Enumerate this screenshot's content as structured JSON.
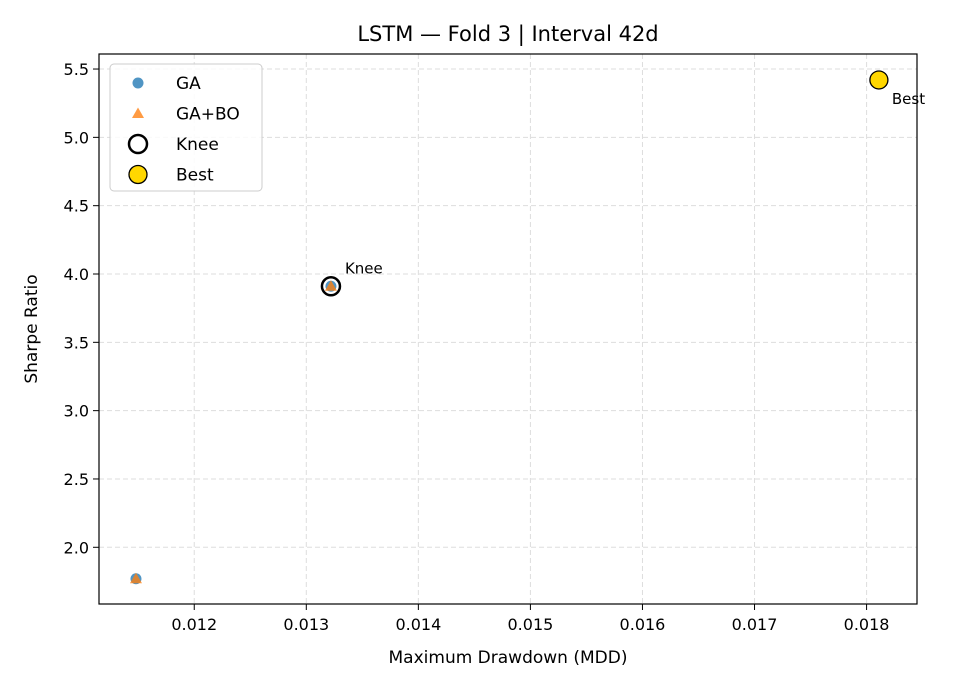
{
  "chart_data": {
    "type": "scatter",
    "title": "LSTM — Fold 3 | Interval 42d",
    "xlabel": "Maximum Drawdown (MDD)",
    "ylabel": "Sharpe Ratio",
    "xlim": [
      0.01115,
      0.01845
    ],
    "ylim": [
      1.585,
      5.61
    ],
    "xticks": [
      0.012,
      0.013,
      0.014,
      0.015,
      0.016,
      0.017,
      0.018
    ],
    "xtick_labels": [
      "0.012",
      "0.013",
      "0.014",
      "0.015",
      "0.016",
      "0.017",
      "0.018"
    ],
    "yticks": [
      2.0,
      2.5,
      3.0,
      3.5,
      4.0,
      4.5,
      5.0,
      5.5
    ],
    "ytick_labels": [
      "2.0",
      "2.5",
      "3.0",
      "3.5",
      "4.0",
      "4.5",
      "5.0",
      "5.5"
    ],
    "grid": true,
    "legend_position": "top-left",
    "series": [
      {
        "name": "GA",
        "marker": "circle",
        "color": "#1f77b4",
        "points": [
          {
            "x": 0.01148,
            "y": 1.77
          },
          {
            "x": 0.01322,
            "y": 3.91
          }
        ]
      },
      {
        "name": "GA+BO",
        "marker": "triangle",
        "color": "#ff7f0e",
        "points": [
          {
            "x": 0.01148,
            "y": 1.77
          },
          {
            "x": 0.01322,
            "y": 3.91
          }
        ]
      },
      {
        "name": "Knee",
        "marker": "hollow-circle",
        "color": "#000000",
        "points": [
          {
            "x": 0.01322,
            "y": 3.91
          }
        ]
      },
      {
        "name": "Best",
        "marker": "filled-circle",
        "color": "#ffd700",
        "points": [
          {
            "x": 0.01811,
            "y": 5.42
          }
        ]
      }
    ],
    "annotations": [
      {
        "text": "Knee",
        "x": 0.01322,
        "y": 3.91
      },
      {
        "text": "Best",
        "x": 0.01811,
        "y": 5.42
      }
    ]
  }
}
